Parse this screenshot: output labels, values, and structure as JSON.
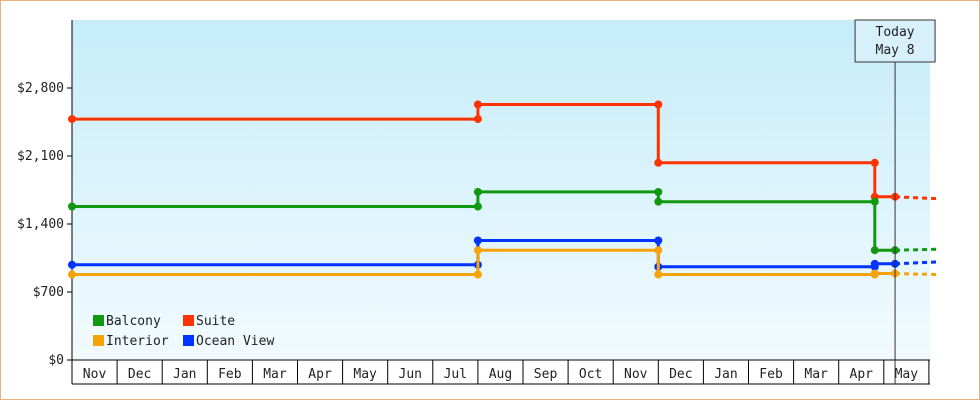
{
  "chart_data": {
    "type": "line",
    "step": true,
    "ylim": [
      0,
      3500
    ],
    "yticks": [
      {
        "value": 0,
        "label": "$0"
      },
      {
        "value": 700,
        "label": "$700"
      },
      {
        "value": 1400,
        "label": "$1,400"
      },
      {
        "value": 2100,
        "label": "$2,100"
      },
      {
        "value": 2800,
        "label": "$2,800"
      }
    ],
    "months": [
      "Nov",
      "Dec",
      "Jan",
      "Feb",
      "Mar",
      "Apr",
      "May",
      "Jun",
      "Jul",
      "Aug",
      "Sep",
      "Oct",
      "Nov",
      "Dec",
      "Jan",
      "Feb",
      "Mar",
      "Apr",
      "May"
    ],
    "today": {
      "line1": "Today",
      "line2": "May 8",
      "x": 18.25
    },
    "series": [
      {
        "name": "Suite",
        "color": "#ff3300",
        "points": [
          [
            0,
            2480
          ],
          [
            9,
            2480
          ],
          [
            9,
            2630
          ],
          [
            13,
            2630
          ],
          [
            13,
            2030
          ],
          [
            17.8,
            2030
          ],
          [
            17.8,
            1680
          ],
          [
            18.25,
            1680
          ]
        ],
        "forecast": [
          [
            18.25,
            1680
          ],
          [
            19.2,
            1660
          ]
        ]
      },
      {
        "name": "Balcony",
        "color": "#109910",
        "points": [
          [
            0,
            1580
          ],
          [
            9,
            1580
          ],
          [
            9,
            1730
          ],
          [
            13,
            1730
          ],
          [
            13,
            1630
          ],
          [
            17.8,
            1630
          ],
          [
            17.8,
            1130
          ],
          [
            18.25,
            1130
          ]
        ],
        "forecast": [
          [
            18.25,
            1130
          ],
          [
            19.2,
            1140
          ]
        ]
      },
      {
        "name": "Ocean View",
        "color": "#0033ff",
        "points": [
          [
            0,
            980
          ],
          [
            9,
            980
          ],
          [
            9,
            1230
          ],
          [
            13,
            1230
          ],
          [
            13,
            960
          ],
          [
            17.8,
            960
          ],
          [
            17.8,
            990
          ],
          [
            18.25,
            990
          ]
        ],
        "forecast": [
          [
            18.25,
            990
          ],
          [
            19.2,
            1010
          ]
        ]
      },
      {
        "name": "Interior",
        "color": "#f5a30a",
        "points": [
          [
            0,
            880
          ],
          [
            9,
            880
          ],
          [
            9,
            1130
          ],
          [
            13,
            1130
          ],
          [
            13,
            880
          ],
          [
            17.8,
            880
          ],
          [
            17.8,
            890
          ],
          [
            18.25,
            890
          ]
        ],
        "forecast": [
          [
            18.25,
            890
          ],
          [
            19.2,
            880
          ]
        ]
      }
    ],
    "legend": [
      {
        "name": "Balcony",
        "color": "#109910"
      },
      {
        "name": "Suite",
        "color": "#ff3300"
      },
      {
        "name": "Interior",
        "color": "#f5a30a"
      },
      {
        "name": "Ocean View",
        "color": "#0033ff"
      }
    ],
    "legend_placement": "bottom-left",
    "grid": false
  }
}
